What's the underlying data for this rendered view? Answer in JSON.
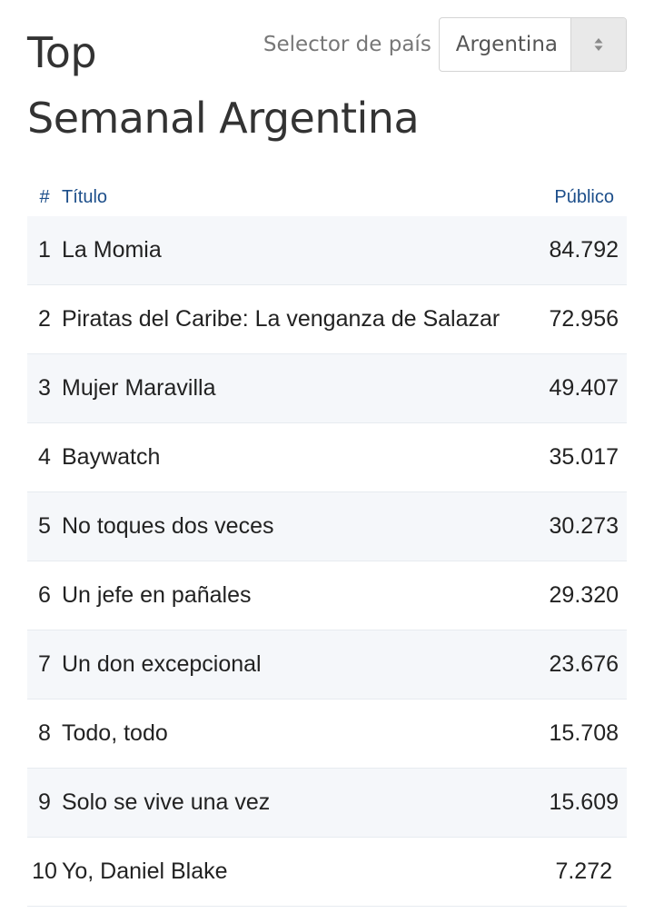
{
  "title": {
    "line1": "Top",
    "line2": "Semanal Argentina"
  },
  "selector": {
    "label": "Selector de país",
    "value": "Argentina",
    "arrow_icon": "up-down-arrows-icon"
  },
  "table": {
    "headers": {
      "num": "#",
      "title": "Título",
      "audience": "Público"
    },
    "rows": [
      {
        "rank": "1",
        "title": "La Momia",
        "audience": "84.792"
      },
      {
        "rank": "2",
        "title": "Piratas del Caribe: La venganza de Salazar",
        "audience": "72.956"
      },
      {
        "rank": "3",
        "title": "Mujer Maravilla",
        "audience": "49.407"
      },
      {
        "rank": "4",
        "title": "Baywatch",
        "audience": "35.017"
      },
      {
        "rank": "5",
        "title": "No toques dos veces",
        "audience": "30.273"
      },
      {
        "rank": "6",
        "title": "Un jefe en pañales",
        "audience": "29.320"
      },
      {
        "rank": "7",
        "title": "Un don excepcional",
        "audience": "23.676"
      },
      {
        "rank": "8",
        "title": "Todo, todo",
        "audience": "15.708"
      },
      {
        "rank": "9",
        "title": "Solo se vive una vez",
        "audience": "15.609"
      },
      {
        "rank": "10",
        "title": "Yo, Daniel Blake",
        "audience": "7.272"
      }
    ]
  },
  "colors": {
    "header_text": "#1c4e8a",
    "stripe": "#f5f7fa",
    "text": "#222222"
  }
}
